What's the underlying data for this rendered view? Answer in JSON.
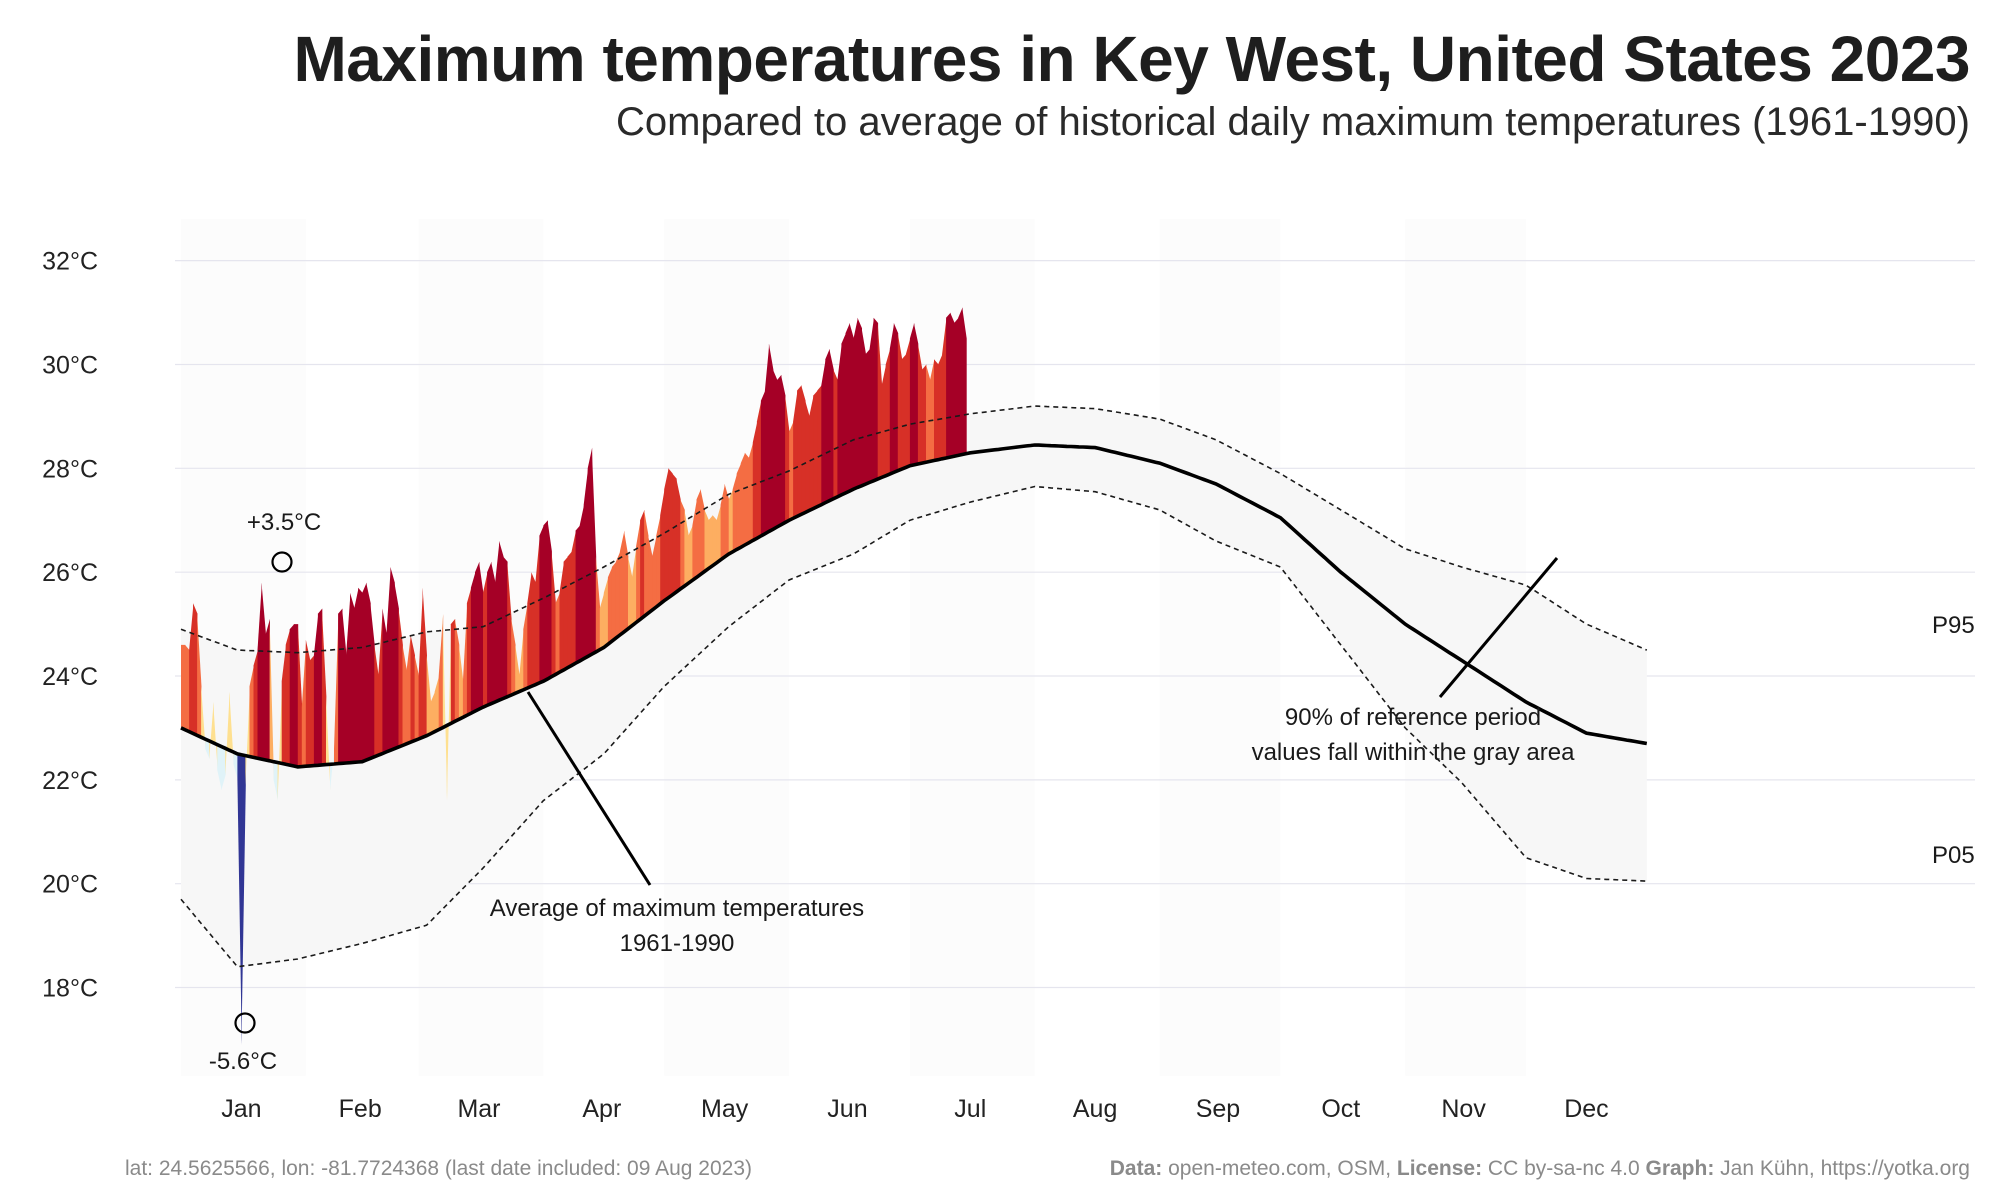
{
  "title": "Maximum temperatures in Key West, United States 2023",
  "subtitle": "Compared to average of historical daily maximum temperatures (1961-1990)",
  "footer": {
    "location": "lat: 24.5625566, lon: -81.7724368 (last date included: 09 Aug 2023)",
    "data_label": "Data:",
    "data_value": "open-meteo.com, OSM,",
    "license_label": "License:",
    "license_value": "CC by-sa-nc 4.0",
    "graph_label": "Graph:",
    "graph_value": "Jan Kühn, https://yotka.org"
  },
  "annotations": {
    "max_anomaly": "+3.5°C",
    "min_anomaly": "-5.6°C",
    "average_line_1": "Average of maximum temperatures",
    "average_line_2": "1961-1990",
    "band_line_1": "90% of reference period",
    "band_line_2": "values fall within the gray area",
    "p95": "P95",
    "p05": "P05"
  },
  "colors": {
    "warm_dark": "#a50026",
    "warm_mid": "#d73027",
    "warm_orange": "#f46d43",
    "warm_light": "#fdae61",
    "warm_pale": "#fee090",
    "cold_pale": "#e0f3f8",
    "cold": "#74add1",
    "cold_dark": "#313695",
    "band": "#f5f5f5",
    "grid": "#e5e5ee"
  },
  "chart_data": {
    "type": "area",
    "year": 2023,
    "y_unit": "°C",
    "ylim": [
      16.3,
      32.8
    ],
    "y_ticks": [
      18,
      20,
      22,
      24,
      26,
      28,
      30,
      32
    ],
    "y_tick_labels": [
      "18°C",
      "20°C",
      "22°C",
      "24°C",
      "26°C",
      "28°C",
      "30°C",
      "32°C"
    ],
    "months": [
      "Jan",
      "Feb",
      "Mar",
      "Apr",
      "May",
      "Jun",
      "Jul",
      "Aug",
      "Sep",
      "Oct",
      "Nov",
      "Dec"
    ],
    "grid": true,
    "reference_mean_anchors": [
      {
        "doy": 1,
        "value": 23.0
      },
      {
        "doy": 15,
        "value": 22.5
      },
      {
        "doy": 30,
        "value": 22.25
      },
      {
        "doy": 46,
        "value": 22.35
      },
      {
        "doy": 62,
        "value": 22.85
      },
      {
        "doy": 76,
        "value": 23.4
      },
      {
        "doy": 91,
        "value": 23.9
      },
      {
        "doy": 106,
        "value": 24.55
      },
      {
        "doy": 121,
        "value": 25.45
      },
      {
        "doy": 137,
        "value": 26.35
      },
      {
        "doy": 152,
        "value": 27.0
      },
      {
        "doy": 168,
        "value": 27.6
      },
      {
        "doy": 182,
        "value": 28.05
      },
      {
        "doy": 197,
        "value": 28.3
      },
      {
        "doy": 213,
        "value": 28.45
      },
      {
        "doy": 228,
        "value": 28.4
      },
      {
        "doy": 244,
        "value": 28.1
      },
      {
        "doy": 258,
        "value": 27.7
      },
      {
        "doy": 274,
        "value": 27.05
      },
      {
        "doy": 289,
        "value": 26.0
      },
      {
        "doy": 305,
        "value": 25.0
      },
      {
        "doy": 319,
        "value": 24.3
      },
      {
        "doy": 335,
        "value": 23.5
      },
      {
        "doy": 350,
        "value": 22.9
      },
      {
        "doy": 365,
        "value": 22.7
      }
    ],
    "p95_anchors": [
      {
        "doy": 1,
        "value": 24.9
      },
      {
        "doy": 15,
        "value": 24.5
      },
      {
        "doy": 30,
        "value": 24.45
      },
      {
        "doy": 46,
        "value": 24.55
      },
      {
        "doy": 62,
        "value": 24.85
      },
      {
        "doy": 76,
        "value": 24.95
      },
      {
        "doy": 91,
        "value": 25.5
      },
      {
        "doy": 106,
        "value": 26.1
      },
      {
        "doy": 121,
        "value": 26.75
      },
      {
        "doy": 137,
        "value": 27.5
      },
      {
        "doy": 152,
        "value": 27.95
      },
      {
        "doy": 168,
        "value": 28.55
      },
      {
        "doy": 182,
        "value": 28.85
      },
      {
        "doy": 197,
        "value": 29.05
      },
      {
        "doy": 213,
        "value": 29.2
      },
      {
        "doy": 228,
        "value": 29.15
      },
      {
        "doy": 244,
        "value": 28.95
      },
      {
        "doy": 258,
        "value": 28.55
      },
      {
        "doy": 274,
        "value": 27.9
      },
      {
        "doy": 289,
        "value": 27.2
      },
      {
        "doy": 305,
        "value": 26.45
      },
      {
        "doy": 319,
        "value": 26.1
      },
      {
        "doy": 335,
        "value": 25.75
      },
      {
        "doy": 350,
        "value": 25.0
      },
      {
        "doy": 365,
        "value": 24.5
      }
    ],
    "p05_anchors": [
      {
        "doy": 1,
        "value": 19.7
      },
      {
        "doy": 15,
        "value": 18.4
      },
      {
        "doy": 30,
        "value": 18.55
      },
      {
        "doy": 46,
        "value": 18.85
      },
      {
        "doy": 62,
        "value": 19.2
      },
      {
        "doy": 76,
        "value": 20.3
      },
      {
        "doy": 91,
        "value": 21.6
      },
      {
        "doy": 106,
        "value": 22.5
      },
      {
        "doy": 121,
        "value": 23.8
      },
      {
        "doy": 137,
        "value": 24.95
      },
      {
        "doy": 152,
        "value": 25.85
      },
      {
        "doy": 168,
        "value": 26.35
      },
      {
        "doy": 182,
        "value": 27.0
      },
      {
        "doy": 197,
        "value": 27.35
      },
      {
        "doy": 213,
        "value": 27.65
      },
      {
        "doy": 228,
        "value": 27.55
      },
      {
        "doy": 244,
        "value": 27.2
      },
      {
        "doy": 258,
        "value": 26.6
      },
      {
        "doy": 274,
        "value": 26.1
      },
      {
        "doy": 289,
        "value": 24.6
      },
      {
        "doy": 305,
        "value": 23.0
      },
      {
        "doy": 319,
        "value": 21.95
      },
      {
        "doy": 335,
        "value": 20.5
      },
      {
        "doy": 350,
        "value": 20.1
      },
      {
        "doy": 365,
        "value": 20.05
      }
    ],
    "observed_2023": [
      {
        "doy": 1,
        "value": 24.6
      },
      {
        "doy": 2,
        "value": 24.6
      },
      {
        "doy": 3,
        "value": 24.5
      },
      {
        "doy": 4,
        "value": 25.4
      },
      {
        "doy": 5,
        "value": 25.2
      },
      {
        "doy": 6,
        "value": 23.8
      },
      {
        "doy": 7,
        "value": 22.6
      },
      {
        "doy": 8,
        "value": 22.4
      },
      {
        "doy": 9,
        "value": 23.5
      },
      {
        "doy": 10,
        "value": 22.2
      },
      {
        "doy": 11,
        "value": 21.8
      },
      {
        "doy": 12,
        "value": 22.1
      },
      {
        "doy": 13,
        "value": 23.7
      },
      {
        "doy": 14,
        "value": 22.3
      },
      {
        "doy": 15,
        "value": 22.0
      },
      {
        "doy": 16,
        "value": 16.9
      },
      {
        "doy": 17,
        "value": 21.9
      },
      {
        "doy": 18,
        "value": 23.8
      },
      {
        "doy": 19,
        "value": 24.2
      },
      {
        "doy": 20,
        "value": 24.5
      },
      {
        "doy": 21,
        "value": 25.8
      },
      {
        "doy": 22,
        "value": 24.8
      },
      {
        "doy": 23,
        "value": 25.1
      },
      {
        "doy": 24,
        "value": 22.0
      },
      {
        "doy": 25,
        "value": 21.6
      },
      {
        "doy": 26,
        "value": 23.9
      },
      {
        "doy": 27,
        "value": 24.6
      },
      {
        "doy": 28,
        "value": 24.9
      },
      {
        "doy": 29,
        "value": 25.0
      },
      {
        "doy": 30,
        "value": 25.0
      },
      {
        "doy": 31,
        "value": 23.4
      },
      {
        "doy": 32,
        "value": 24.7
      },
      {
        "doy": 33,
        "value": 24.3
      },
      {
        "doy": 34,
        "value": 24.4
      },
      {
        "doy": 35,
        "value": 25.2
      },
      {
        "doy": 36,
        "value": 25.3
      },
      {
        "doy": 37,
        "value": 23.6
      },
      {
        "doy": 38,
        "value": 21.8
      },
      {
        "doy": 39,
        "value": 22.6
      },
      {
        "doy": 40,
        "value": 25.2
      },
      {
        "doy": 41,
        "value": 25.3
      },
      {
        "doy": 42,
        "value": 24.4
      },
      {
        "doy": 43,
        "value": 25.6
      },
      {
        "doy": 44,
        "value": 25.3
      },
      {
        "doy": 45,
        "value": 25.7
      },
      {
        "doy": 46,
        "value": 25.6
      },
      {
        "doy": 47,
        "value": 25.8
      },
      {
        "doy": 48,
        "value": 25.4
      },
      {
        "doy": 49,
        "value": 24.6
      },
      {
        "doy": 50,
        "value": 24.0
      },
      {
        "doy": 51,
        "value": 25.3
      },
      {
        "doy": 52,
        "value": 24.8
      },
      {
        "doy": 53,
        "value": 26.1
      },
      {
        "doy": 54,
        "value": 25.8
      },
      {
        "doy": 55,
        "value": 25.3
      },
      {
        "doy": 56,
        "value": 24.6
      },
      {
        "doy": 57,
        "value": 24.1
      },
      {
        "doy": 58,
        "value": 24.8
      },
      {
        "doy": 59,
        "value": 24.4
      },
      {
        "doy": 60,
        "value": 24.0
      },
      {
        "doy": 61,
        "value": 25.7
      },
      {
        "doy": 62,
        "value": 24.4
      },
      {
        "doy": 63,
        "value": 23.5
      },
      {
        "doy": 64,
        "value": 23.7
      },
      {
        "doy": 65,
        "value": 24.0
      },
      {
        "doy": 66,
        "value": 25.2
      },
      {
        "doy": 67,
        "value": 21.6
      },
      {
        "doy": 68,
        "value": 25.0
      },
      {
        "doy": 69,
        "value": 25.1
      },
      {
        "doy": 70,
        "value": 24.6
      },
      {
        "doy": 71,
        "value": 23.9
      },
      {
        "doy": 72,
        "value": 25.4
      },
      {
        "doy": 73,
        "value": 25.7
      },
      {
        "doy": 74,
        "value": 26.0
      },
      {
        "doy": 75,
        "value": 26.2
      },
      {
        "doy": 76,
        "value": 25.6
      },
      {
        "doy": 77,
        "value": 26.0
      },
      {
        "doy": 78,
        "value": 26.2
      },
      {
        "doy": 79,
        "value": 25.8
      },
      {
        "doy": 80,
        "value": 26.6
      },
      {
        "doy": 81,
        "value": 26.3
      },
      {
        "doy": 82,
        "value": 26.2
      },
      {
        "doy": 83,
        "value": 25.1
      },
      {
        "doy": 84,
        "value": 24.6
      },
      {
        "doy": 85,
        "value": 24.0
      },
      {
        "doy": 86,
        "value": 24.9
      },
      {
        "doy": 87,
        "value": 25.4
      },
      {
        "doy": 88,
        "value": 26.0
      },
      {
        "doy": 89,
        "value": 25.8
      },
      {
        "doy": 90,
        "value": 26.7
      },
      {
        "doy": 91,
        "value": 26.9
      },
      {
        "doy": 92,
        "value": 27.0
      },
      {
        "doy": 93,
        "value": 26.4
      },
      {
        "doy": 94,
        "value": 25.4
      },
      {
        "doy": 95,
        "value": 25.6
      },
      {
        "doy": 96,
        "value": 26.2
      },
      {
        "doy": 97,
        "value": 26.3
      },
      {
        "doy": 98,
        "value": 26.4
      },
      {
        "doy": 99,
        "value": 26.8
      },
      {
        "doy": 100,
        "value": 26.9
      },
      {
        "doy": 101,
        "value": 27.3
      },
      {
        "doy": 102,
        "value": 28.0
      },
      {
        "doy": 103,
        "value": 28.4
      },
      {
        "doy": 104,
        "value": 26.3
      },
      {
        "doy": 105,
        "value": 25.3
      },
      {
        "doy": 106,
        "value": 25.6
      },
      {
        "doy": 107,
        "value": 25.9
      },
      {
        "doy": 108,
        "value": 26.1
      },
      {
        "doy": 109,
        "value": 26.2
      },
      {
        "doy": 110,
        "value": 26.4
      },
      {
        "doy": 111,
        "value": 26.8
      },
      {
        "doy": 112,
        "value": 26.3
      },
      {
        "doy": 113,
        "value": 25.9
      },
      {
        "doy": 114,
        "value": 26.5
      },
      {
        "doy": 115,
        "value": 27.0
      },
      {
        "doy": 116,
        "value": 27.2
      },
      {
        "doy": 117,
        "value": 26.7
      },
      {
        "doy": 118,
        "value": 26.3
      },
      {
        "doy": 119,
        "value": 26.7
      },
      {
        "doy": 120,
        "value": 27.1
      },
      {
        "doy": 121,
        "value": 27.6
      },
      {
        "doy": 122,
        "value": 28.0
      },
      {
        "doy": 123,
        "value": 27.9
      },
      {
        "doy": 124,
        "value": 27.8
      },
      {
        "doy": 125,
        "value": 27.4
      },
      {
        "doy": 126,
        "value": 27.2
      },
      {
        "doy": 127,
        "value": 26.7
      },
      {
        "doy": 128,
        "value": 26.9
      },
      {
        "doy": 129,
        "value": 27.4
      },
      {
        "doy": 130,
        "value": 27.6
      },
      {
        "doy": 131,
        "value": 27.2
      },
      {
        "doy": 132,
        "value": 27.0
      },
      {
        "doy": 133,
        "value": 27.1
      },
      {
        "doy": 134,
        "value": 27.0
      },
      {
        "doy": 135,
        "value": 27.3
      },
      {
        "doy": 136,
        "value": 27.7
      },
      {
        "doy": 137,
        "value": 27.4
      },
      {
        "doy": 138,
        "value": 27.6
      },
      {
        "doy": 139,
        "value": 27.9
      },
      {
        "doy": 140,
        "value": 28.1
      },
      {
        "doy": 141,
        "value": 28.3
      },
      {
        "doy": 142,
        "value": 28.2
      },
      {
        "doy": 143,
        "value": 28.5
      },
      {
        "doy": 144,
        "value": 28.9
      },
      {
        "doy": 145,
        "value": 29.3
      },
      {
        "doy": 146,
        "value": 29.5
      },
      {
        "doy": 147,
        "value": 30.4
      },
      {
        "doy": 148,
        "value": 29.9
      },
      {
        "doy": 149,
        "value": 29.7
      },
      {
        "doy": 150,
        "value": 29.8
      },
      {
        "doy": 151,
        "value": 29.4
      },
      {
        "doy": 152,
        "value": 28.7
      },
      {
        "doy": 153,
        "value": 28.9
      },
      {
        "doy": 154,
        "value": 29.5
      },
      {
        "doy": 155,
        "value": 29.6
      },
      {
        "doy": 156,
        "value": 29.3
      },
      {
        "doy": 157,
        "value": 29.0
      },
      {
        "doy": 158,
        "value": 29.4
      },
      {
        "doy": 159,
        "value": 29.5
      },
      {
        "doy": 160,
        "value": 29.6
      },
      {
        "doy": 161,
        "value": 30.1
      },
      {
        "doy": 162,
        "value": 30.3
      },
      {
        "doy": 163,
        "value": 29.9
      },
      {
        "doy": 164,
        "value": 29.7
      },
      {
        "doy": 165,
        "value": 30.4
      },
      {
        "doy": 166,
        "value": 30.6
      },
      {
        "doy": 167,
        "value": 30.8
      },
      {
        "doy": 168,
        "value": 30.5
      },
      {
        "doy": 169,
        "value": 30.9
      },
      {
        "doy": 170,
        "value": 30.7
      },
      {
        "doy": 171,
        "value": 30.2
      },
      {
        "doy": 172,
        "value": 30.3
      },
      {
        "doy": 173,
        "value": 30.9
      },
      {
        "doy": 174,
        "value": 30.8
      },
      {
        "doy": 175,
        "value": 29.6
      },
      {
        "doy": 176,
        "value": 30.0
      },
      {
        "doy": 177,
        "value": 30.3
      },
      {
        "doy": 178,
        "value": 30.8
      },
      {
        "doy": 179,
        "value": 30.6
      },
      {
        "doy": 180,
        "value": 30.1
      },
      {
        "doy": 181,
        "value": 30.2
      },
      {
        "doy": 182,
        "value": 30.5
      },
      {
        "doy": 183,
        "value": 30.8
      },
      {
        "doy": 184,
        "value": 30.4
      },
      {
        "doy": 185,
        "value": 29.9
      },
      {
        "doy": 186,
        "value": 30.0
      },
      {
        "doy": 187,
        "value": 29.7
      },
      {
        "doy": 188,
        "value": 30.1
      },
      {
        "doy": 189,
        "value": 30.0
      },
      {
        "doy": 190,
        "value": 30.2
      },
      {
        "doy": 191,
        "value": 30.9
      },
      {
        "doy": 192,
        "value": 31.0
      },
      {
        "doy": 193,
        "value": 30.8
      },
      {
        "doy": 194,
        "value": 30.9
      },
      {
        "doy": 195,
        "value": 31.1
      },
      {
        "doy": 196,
        "value": 30.5
      }
    ]
  }
}
